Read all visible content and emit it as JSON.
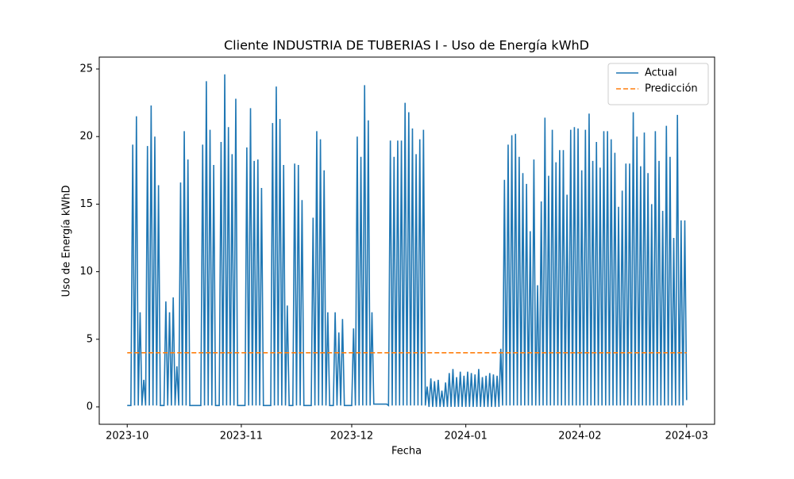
{
  "chart_data": {
    "type": "line",
    "title": "Cliente INDUSTRIA DE TUBERIAS I - Uso de Energía kWhD",
    "x_label": "Fecha",
    "y_label": "Uso de Energía kWhD",
    "xlim": [
      -7.6,
      159.6
    ],
    "ylim": [
      -1.29,
      25.88
    ],
    "xticks": [
      {
        "value": 0,
        "label": "2023-10"
      },
      {
        "value": 31,
        "label": "2023-11"
      },
      {
        "value": 61,
        "label": "2023-12"
      },
      {
        "value": 92,
        "label": "2024-01"
      },
      {
        "value": 123,
        "label": "2024-02"
      },
      {
        "value": 152,
        "label": "2024-03"
      }
    ],
    "yticks": [
      0,
      5,
      10,
      15,
      20,
      25
    ],
    "legend": "upper right",
    "series": [
      {
        "name": "Actual",
        "color": "#1f77b4",
        "dash": "solid",
        "x": [
          0,
          0.5,
          1,
          1.5,
          2,
          2.5,
          3,
          3.5,
          4,
          4.5,
          5,
          5.5,
          6,
          6.5,
          7,
          7.5,
          8,
          8.5,
          9,
          9.5,
          10,
          10.5,
          11,
          11.5,
          12,
          12.5,
          13,
          13.5,
          14,
          14.5,
          15,
          15.5,
          16,
          16.5,
          17,
          17.5,
          18,
          18.5,
          19,
          19.5,
          20,
          20.5,
          21,
          21.5,
          22,
          22.5,
          23,
          23.5,
          24,
          24.5,
          25,
          25.5,
          26,
          26.5,
          27,
          27.5,
          28,
          28.5,
          29,
          29.5,
          30,
          30.5,
          31,
          31.5,
          32,
          32.5,
          33,
          33.5,
          34,
          34.5,
          35,
          35.5,
          36,
          36.5,
          37,
          37.5,
          38,
          38.5,
          39,
          39.5,
          40,
          40.5,
          41,
          41.5,
          42,
          42.5,
          43,
          43.5,
          44,
          44.5,
          45,
          45.5,
          46,
          46.5,
          47,
          47.5,
          48,
          48.5,
          49,
          49.5,
          50,
          50.5,
          51,
          51.5,
          52,
          52.5,
          53,
          53.5,
          54,
          54.5,
          55,
          55.5,
          56,
          56.5,
          57,
          57.5,
          58,
          58.5,
          59,
          59.5,
          60,
          60.5,
          61,
          61.5,
          62,
          62.5,
          63,
          63.5,
          64,
          64.5,
          65,
          65.5,
          66,
          66.5,
          67,
          67.5,
          68,
          68.5,
          69,
          69.5,
          70,
          70.5,
          71,
          71.5,
          72,
          72.5,
          73,
          73.5,
          74,
          74.5,
          75,
          75.5,
          76,
          76.5,
          77,
          77.5,
          78,
          78.5,
          79,
          79.5,
          80,
          80.5,
          81,
          81.5,
          82,
          82.5,
          83,
          83.5,
          84,
          84.5,
          85,
          85.5,
          86,
          86.5,
          87,
          87.5,
          88,
          88.5,
          89,
          89.5,
          90,
          90.5,
          91,
          91.5,
          92,
          92.5,
          93,
          93.5,
          94,
          94.5,
          95,
          95.5,
          96,
          96.5,
          97,
          97.5,
          98,
          98.5,
          99,
          99.5,
          100,
          100.5,
          101,
          101.5,
          102,
          102.5,
          103,
          103.5,
          104,
          104.5,
          105,
          105.5,
          106,
          106.5,
          107,
          107.5,
          108,
          108.5,
          109,
          109.5,
          110,
          110.5,
          111,
          111.5,
          112,
          112.5,
          113,
          113.5,
          114,
          114.5,
          115,
          115.5,
          116,
          116.5,
          117,
          117.5,
          118,
          118.5,
          119,
          119.5,
          120,
          120.5,
          121,
          121.5,
          122,
          122.5,
          123,
          123.5,
          124,
          124.5,
          125,
          125.5,
          126,
          126.5,
          127,
          127.5,
          128,
          128.5,
          129,
          129.5,
          130,
          130.5,
          131,
          131.5,
          132,
          132.5,
          133,
          133.5,
          134,
          134.5,
          135,
          135.5,
          136,
          136.5,
          137,
          137.5,
          138,
          138.5,
          139,
          139.5,
          140,
          140.5,
          141,
          141.5,
          142,
          142.5,
          143,
          143.5,
          144,
          144.5,
          145,
          145.5,
          146,
          146.5,
          147,
          147.5,
          148,
          148.5,
          149,
          149.5,
          150,
          150.5,
          151,
          151.5,
          152
        ],
        "values": [
          0.1,
          0.1,
          0.1,
          19.4,
          0.1,
          21.5,
          0.1,
          7,
          0.1,
          2,
          0.1,
          19.3,
          0.1,
          22.3,
          0.1,
          20,
          0.1,
          16.4,
          0.1,
          0.1,
          0.1,
          7.8,
          0.1,
          7,
          0.1,
          8.1,
          0.1,
          3,
          0.1,
          16.6,
          0.1,
          20.4,
          0.1,
          18.3,
          0.1,
          0.1,
          0.1,
          0.1,
          0.1,
          0.1,
          0.1,
          19.4,
          0.1,
          24.1,
          0.1,
          20.5,
          0.1,
          17.9,
          0.1,
          0.1,
          0.1,
          19.6,
          0.1,
          24.6,
          0.1,
          20.7,
          0.1,
          18.7,
          0.1,
          22.8,
          0.1,
          0.1,
          0.1,
          0.1,
          0.1,
          19.2,
          0.1,
          22.1,
          0.1,
          18.2,
          0.1,
          18.3,
          0.1,
          16.2,
          0.1,
          0.1,
          0.1,
          0.1,
          0.1,
          21,
          0.1,
          23.7,
          0.1,
          21.3,
          0.1,
          17.9,
          0.1,
          7.5,
          0.1,
          0.1,
          0.1,
          18,
          0.1,
          17.9,
          0.1,
          15.3,
          0.1,
          0.1,
          0.1,
          0.1,
          0.1,
          14,
          0.1,
          20.4,
          0.1,
          19.8,
          0.1,
          17.5,
          0.1,
          7,
          0.1,
          0.1,
          0.1,
          7,
          0.1,
          5.5,
          0.1,
          6.5,
          0.1,
          0.1,
          0.1,
          0.1,
          0.1,
          5.8,
          0.1,
          20,
          0.1,
          18.5,
          0.1,
          23.8,
          0.1,
          21.2,
          0.1,
          7,
          0.2,
          0.2,
          0.2,
          0.2,
          0.2,
          0.2,
          0.2,
          0.2,
          0.1,
          19.7,
          0.1,
          18.5,
          0.1,
          19.7,
          0.1,
          19.7,
          0.1,
          22.5,
          0.1,
          21.8,
          0.1,
          20.6,
          0.1,
          18.7,
          0.1,
          19.8,
          0.1,
          20.5,
          0.1,
          1.5,
          0,
          2.1,
          0,
          1.9,
          0,
          2,
          0,
          1.2,
          0,
          1.8,
          0,
          2.5,
          0,
          2.8,
          0,
          2.2,
          0,
          2.6,
          0,
          2.3,
          0,
          2.6,
          0,
          2.5,
          0,
          2.4,
          0,
          2.8,
          0,
          2.2,
          0,
          2.3,
          0,
          2.5,
          0,
          2.4,
          0,
          2.3,
          0,
          4.3,
          0.1,
          16.8,
          0.1,
          19.4,
          0.1,
          20.1,
          0.1,
          20.2,
          0.1,
          18.5,
          0.1,
          17.3,
          0.1,
          16.5,
          0.1,
          13,
          0.1,
          18.3,
          0.1,
          9,
          0.1,
          15.2,
          0.1,
          21.4,
          0.1,
          17.1,
          0.1,
          20.5,
          0.1,
          18.1,
          0.1,
          19,
          0.1,
          19,
          0.1,
          15.7,
          0.1,
          20.5,
          0.1,
          20.7,
          0.1,
          20.6,
          0.1,
          17.5,
          0.1,
          20.5,
          0.1,
          21.7,
          0.1,
          18.2,
          0.1,
          19.6,
          0.1,
          17.7,
          0.1,
          20.4,
          0.1,
          20.4,
          0.1,
          19.8,
          0.1,
          18.8,
          0.1,
          14.8,
          0.1,
          16,
          0.1,
          18,
          0.1,
          18,
          0.1,
          21.8,
          0.1,
          20,
          0.1,
          17.8,
          0.1,
          20.3,
          0.1,
          17.3,
          0.1,
          15,
          0.1,
          20.4,
          0.1,
          18.2,
          0.1,
          14.5,
          0.1,
          20.8,
          0.1,
          18.5,
          0.1,
          12.5,
          0.1,
          21.6,
          0.1,
          13.8,
          0.1,
          13.8,
          0.5
        ]
      },
      {
        "name": "Predicción",
        "color": "#ff7f0e",
        "dash": "dashed",
        "x": [
          0,
          152
        ],
        "values": [
          4,
          4
        ]
      }
    ]
  }
}
